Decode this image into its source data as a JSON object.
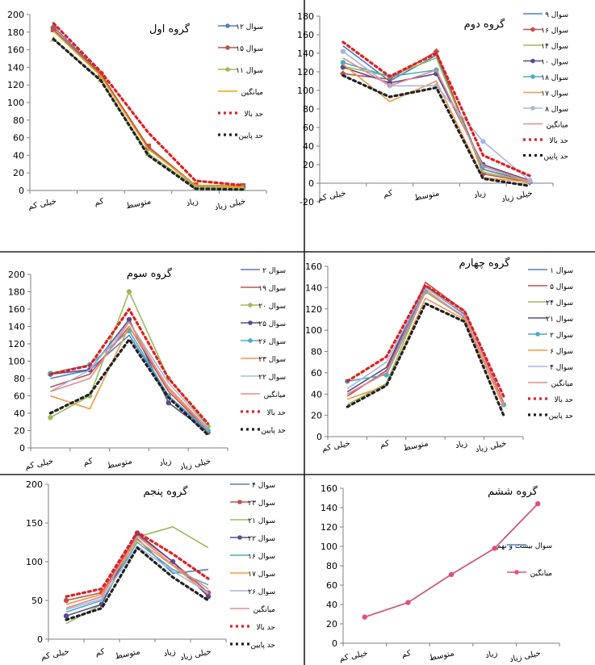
{
  "chart_data": [
    {
      "type": "line",
      "title": "گروه اول",
      "categories": [
        "خیلی کم",
        "کم",
        "متوسط",
        "زیاد",
        "خیلی زیاد"
      ],
      "ylim": [
        0,
        200
      ],
      "yticks": [
        0,
        20,
        40,
        60,
        80,
        100,
        120,
        140,
        160,
        180,
        200
      ],
      "series": [
        {
          "name": "سوال ۱۲",
          "color": "#4f81bd",
          "style": "solid",
          "marker": "diamond",
          "values": [
            186,
            133,
            48,
            5,
            4
          ]
        },
        {
          "name": "سوال ۱۵",
          "color": "#c0504d",
          "style": "solid",
          "marker": "square",
          "values": [
            183,
            132,
            50,
            6,
            5
          ]
        },
        {
          "name": "سوال ۱۱",
          "color": "#9bbb59",
          "style": "solid",
          "marker": "triangle",
          "values": [
            172,
            126,
            42,
            4,
            3
          ]
        },
        {
          "name": "میانگین",
          "color": "#f0a30a",
          "style": "solid",
          "marker": "none",
          "values": [
            181,
            130,
            47,
            6,
            4
          ]
        },
        {
          "name": "حد بالا",
          "color": "#e02020",
          "style": "dotted",
          "marker": "none",
          "values": [
            190,
            135,
            66,
            11,
            6
          ]
        },
        {
          "name": "حد پایین",
          "color": "#222222",
          "style": "dotted",
          "marker": "none",
          "values": [
            172,
            125,
            40,
            2,
            1
          ]
        }
      ]
    },
    {
      "type": "line",
      "title": "گروه دوم",
      "categories": [
        "خیلی کم",
        "کم",
        "متوسط",
        "زیاد",
        "خیلی زیاد"
      ],
      "ylim": [
        -20,
        180
      ],
      "yticks": [
        -20,
        0,
        20,
        40,
        60,
        80,
        100,
        120,
        140,
        160,
        180
      ],
      "series": [
        {
          "name": "سوال ۹",
          "color": "#4f81bd",
          "style": "solid",
          "marker": "none",
          "values": [
            148,
            110,
            138,
            15,
            2
          ]
        },
        {
          "name": "سوال ۱۶",
          "color": "#c0504d",
          "style": "solid",
          "marker": "diamond",
          "values": [
            118,
            112,
            142,
            10,
            1
          ]
        },
        {
          "name": "سوال ۱۴",
          "color": "#9bbb59",
          "style": "solid",
          "marker": "none",
          "values": [
            126,
            115,
            135,
            12,
            2
          ]
        },
        {
          "name": "سوال ۱۰",
          "color": "#5a4a8e",
          "style": "solid",
          "marker": "circle",
          "values": [
            125,
            108,
            118,
            20,
            3
          ]
        },
        {
          "name": "سوال ۱۸",
          "color": "#4bacc6",
          "style": "solid",
          "marker": "circle",
          "values": [
            130,
            115,
            122,
            18,
            2
          ]
        },
        {
          "name": "سوال ۱۷",
          "color": "#f79646",
          "style": "solid",
          "marker": "none",
          "values": [
            128,
            88,
            110,
            6,
            1
          ]
        },
        {
          "name": "سوال ۸",
          "color": "#a9b7dd",
          "style": "solid",
          "marker": "circle",
          "values": [
            142,
            105,
            105,
            45,
            3
          ]
        },
        {
          "name": "میانگین",
          "color": "#e78a8a",
          "style": "solid",
          "marker": "none",
          "values": [
            135,
            105,
            122,
            18,
            2
          ]
        },
        {
          "name": "حد بالا",
          "color": "#e02020",
          "style": "dotted",
          "marker": "none",
          "values": [
            152,
            115,
            140,
            30,
            8
          ]
        },
        {
          "name": "حد پایین",
          "color": "#222222",
          "style": "dotted",
          "marker": "none",
          "values": [
            116,
            93,
            103,
            5,
            -3
          ]
        }
      ]
    },
    {
      "type": "line",
      "title": "گروه سوم",
      "categories": [
        "خیلی کم",
        "کم",
        "متوسط",
        "زیاد",
        "خیلی زیاد"
      ],
      "ylim": [
        0,
        200
      ],
      "yticks": [
        0,
        20,
        40,
        60,
        80,
        100,
        120,
        140,
        160,
        180,
        200
      ],
      "series": [
        {
          "name": "سوال ۲",
          "color": "#4f81bd",
          "style": "solid",
          "marker": "none",
          "values": [
            80,
            90,
            130,
            60,
            18
          ]
        },
        {
          "name": "سوال ۱۹",
          "color": "#c0504d",
          "style": "solid",
          "marker": "none",
          "values": [
            70,
            85,
            140,
            65,
            20
          ]
        },
        {
          "name": "سوال ۲۰",
          "color": "#9bbb59",
          "style": "solid",
          "marker": "circle",
          "values": [
            35,
            60,
            180,
            80,
            25
          ]
        },
        {
          "name": "سوال ۲۵",
          "color": "#5a4a8e",
          "style": "solid",
          "marker": "circle",
          "values": [
            85,
            90,
            148,
            52,
            18
          ]
        },
        {
          "name": "سوال ۲۶",
          "color": "#4bacc6",
          "style": "solid",
          "marker": "circle",
          "values": [
            86,
            96,
            135,
            60,
            20
          ]
        },
        {
          "name": "سوال ۲۳",
          "color": "#f79646",
          "style": "solid",
          "marker": "none",
          "values": [
            60,
            45,
            140,
            70,
            22
          ]
        },
        {
          "name": "سوال ۲۲",
          "color": "#a9b7dd",
          "style": "solid",
          "marker": "none",
          "values": [
            65,
            90,
            145,
            75,
            24
          ]
        },
        {
          "name": "میانگین",
          "color": "#e78a8a",
          "style": "solid",
          "marker": "none",
          "values": [
            65,
            80,
            145,
            68,
            21
          ]
        },
        {
          "name": "حد بالا",
          "color": "#e02020",
          "style": "dotted",
          "marker": "none",
          "values": [
            85,
            95,
            160,
            80,
            28
          ]
        },
        {
          "name": "حد پایین",
          "color": "#222222",
          "style": "dotted",
          "marker": "none",
          "values": [
            40,
            62,
            125,
            58,
            15
          ]
        }
      ]
    },
    {
      "type": "line",
      "title": "گروه چهارم",
      "categories": [
        "خیلی کم",
        "کم",
        "متوسط",
        "زیاد",
        "خیلی زیاد"
      ],
      "ylim": [
        0,
        160
      ],
      "yticks": [
        0,
        20,
        40,
        60,
        80,
        100,
        120,
        140,
        160
      ],
      "series": [
        {
          "name": "سوال ۱",
          "color": "#4f81bd",
          "style": "solid",
          "marker": "none",
          "values": [
            40,
            60,
            140,
            115,
            30
          ]
        },
        {
          "name": "سوال ۵",
          "color": "#c0504d",
          "style": "solid",
          "marker": "none",
          "values": [
            38,
            62,
            145,
            118,
            32
          ]
        },
        {
          "name": "سوال ۲۴",
          "color": "#9bbb59",
          "style": "solid",
          "marker": "none",
          "values": [
            30,
            50,
            138,
            112,
            28
          ]
        },
        {
          "name": "سوال ۲۱",
          "color": "#5a4a8e",
          "style": "solid",
          "marker": "none",
          "values": [
            42,
            65,
            142,
            115,
            30
          ]
        },
        {
          "name": "سوال ۲",
          "color": "#4bacc6",
          "style": "solid",
          "marker": "circle",
          "values": [
            52,
            58,
            136,
            112,
            30
          ]
        },
        {
          "name": "سوال ۶",
          "color": "#f79646",
          "style": "solid",
          "marker": "none",
          "values": [
            35,
            48,
            130,
            110,
            28
          ]
        },
        {
          "name": "سوال ۴",
          "color": "#a9b7dd",
          "style": "solid",
          "marker": "none",
          "values": [
            45,
            70,
            140,
            116,
            30
          ]
        },
        {
          "name": "میانگین",
          "color": "#e78a8a",
          "style": "solid",
          "marker": "none",
          "values": [
            40,
            60,
            136,
            113,
            30
          ]
        },
        {
          "name": "حد بالا",
          "color": "#e02020",
          "style": "dotted",
          "marker": "none",
          "values": [
            52,
            75,
            142,
            118,
            38
          ]
        },
        {
          "name": "حد پایین",
          "color": "#222222",
          "style": "dotted",
          "marker": "none",
          "values": [
            28,
            48,
            125,
            108,
            20
          ]
        }
      ]
    },
    {
      "type": "line",
      "title": "گروه پنجم",
      "categories": [
        "خیلی کم",
        "کم",
        "متوسط",
        "زیاد",
        "خیلی زیاد"
      ],
      "ylim": [
        0,
        200
      ],
      "yticks": [
        0,
        50,
        100,
        150,
        200
      ],
      "series": [
        {
          "name": "سوال ۴",
          "color": "#4f81bd",
          "style": "solid",
          "marker": "none",
          "values": [
            40,
            55,
            130,
            85,
            90
          ]
        },
        {
          "name": "سوال ۲۳",
          "color": "#c0504d",
          "style": "solid",
          "marker": "circle",
          "values": [
            50,
            60,
            135,
            100,
            60
          ]
        },
        {
          "name": "سوال ۲۱",
          "color": "#9bbb59",
          "style": "solid",
          "marker": "none",
          "values": [
            20,
            45,
            132,
            145,
            118
          ]
        },
        {
          "name": "سوال ۲۲",
          "color": "#5a4a8e",
          "style": "solid",
          "marker": "circle",
          "values": [
            30,
            45,
            137,
            100,
            55
          ]
        },
        {
          "name": "سوال ۱۶",
          "color": "#4bacc6",
          "style": "solid",
          "marker": "none",
          "values": [
            35,
            50,
            125,
            90,
            70
          ]
        },
        {
          "name": "سوال ۱۷",
          "color": "#f79646",
          "style": "solid",
          "marker": "none",
          "values": [
            45,
            58,
            128,
            95,
            58
          ]
        },
        {
          "name": "سوال ۲۶",
          "color": "#a9b7dd",
          "style": "solid",
          "marker": "none",
          "values": [
            38,
            52,
            120,
            88,
            60
          ]
        },
        {
          "name": "میانگین",
          "color": "#e78a8a",
          "style": "solid",
          "marker": "none",
          "values": [
            40,
            55,
            133,
            96,
            65
          ]
        },
        {
          "name": "حد بالا",
          "color": "#e02020",
          "style": "dotted",
          "marker": "none",
          "values": [
            55,
            65,
            138,
            110,
            78
          ]
        },
        {
          "name": "حد پایین",
          "color": "#222222",
          "style": "dotted",
          "marker": "none",
          "values": [
            25,
            40,
            118,
            80,
            50
          ]
        }
      ]
    },
    {
      "type": "line",
      "title": "گروه ششم",
      "categories": [
        "خیلی کم",
        "کم",
        "متوسط",
        "زیاد",
        "خیلی زیاد"
      ],
      "ylim": [
        0,
        160
      ],
      "yticks": [
        0,
        20,
        40,
        60,
        80,
        100,
        120,
        140,
        160
      ],
      "series": [
        {
          "name": "سوال بیست و نهم",
          "color": "#4f81bd",
          "style": "solid",
          "marker": "none",
          "values": [
            27,
            42,
            71,
            98,
            144
          ]
        },
        {
          "name": "میانگین",
          "color": "#e0507a",
          "style": "solid",
          "marker": "circle",
          "values": [
            27,
            42,
            71,
            98,
            144
          ]
        }
      ]
    }
  ]
}
